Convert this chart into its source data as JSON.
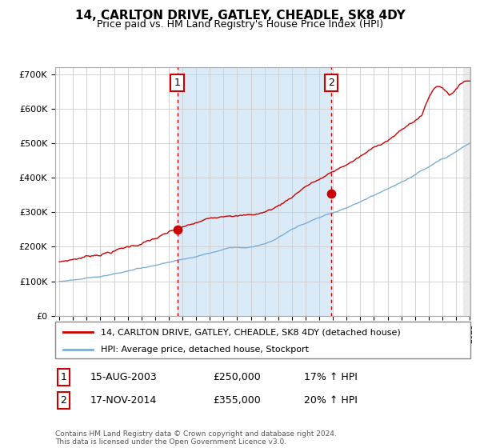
{
  "title": "14, CARLTON DRIVE, GATLEY, CHEADLE, SK8 4DY",
  "subtitle": "Price paid vs. HM Land Registry's House Price Index (HPI)",
  "year_start": 1995,
  "year_end": 2025,
  "ylim": [
    0,
    720000
  ],
  "yticks": [
    0,
    100000,
    200000,
    300000,
    400000,
    500000,
    600000,
    700000
  ],
  "ytick_labels": [
    "£0",
    "£100K",
    "£200K",
    "£300K",
    "£400K",
    "£500K",
    "£600K",
    "£700K"
  ],
  "sale1_date": 2003.62,
  "sale1_price": 250000,
  "sale1_label": "1",
  "sale2_date": 2014.88,
  "sale2_price": 355000,
  "sale2_label": "2",
  "legend_line1": "14, CARLTON DRIVE, GATLEY, CHEADLE, SK8 4DY (detached house)",
  "legend_line2": "HPI: Average price, detached house, Stockport",
  "table_row1": [
    "1",
    "15-AUG-2003",
    "£250,000",
    "17% ↑ HPI"
  ],
  "table_row2": [
    "2",
    "17-NOV-2014",
    "£355,000",
    "20% ↑ HPI"
  ],
  "footer": "Contains HM Land Registry data © Crown copyright and database right 2024.\nThis data is licensed under the Open Government Licence v3.0.",
  "line_color_red": "#cc0000",
  "line_color_blue": "#7bafd4",
  "bg_shaded": "#daeaf7",
  "grid_color": "#cccccc"
}
